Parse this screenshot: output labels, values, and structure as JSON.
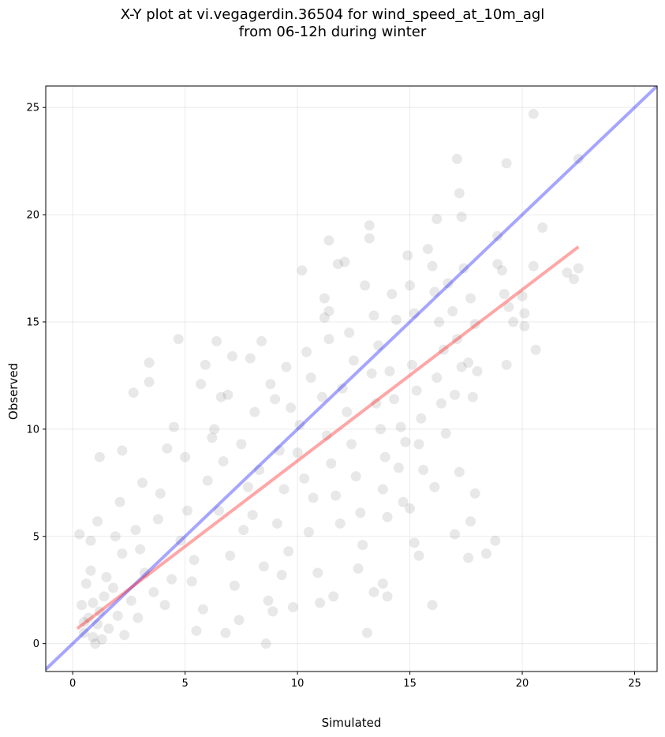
{
  "title_line1": "X-Y plot at vi.vegagerdin.36504 for wind_speed_at_10m_agl",
  "title_line2": "from 06-12h during winter",
  "chart_data": {
    "type": "scatter",
    "title": "X-Y plot at vi.vegagerdin.36504 for wind_speed_at_10m_agl from 06-12h during winter",
    "xlabel": "Simulated",
    "ylabel": "Observed",
    "xlim": [
      -1.2,
      26
    ],
    "ylim": [
      -1.3,
      26
    ],
    "xticks": [
      "0",
      "5",
      "10",
      "15",
      "20",
      "25"
    ],
    "yticks": [
      "0",
      "5",
      "10",
      "15",
      "20",
      "25"
    ],
    "grid": true,
    "colors": {
      "points": "#000000",
      "identity_line": "#0000ff",
      "fit_line": "#ff0000"
    },
    "identity_line": {
      "x": [
        -1.2,
        26
      ],
      "y": [
        -1.2,
        26
      ]
    },
    "fit_line": {
      "x": [
        0.2,
        22.5
      ],
      "y": [
        0.7,
        18.5
      ]
    },
    "points": [
      [
        0.3,
        5.1
      ],
      [
        0.8,
        4.8
      ],
      [
        0.5,
        0.5
      ],
      [
        0.7,
        1.2
      ],
      [
        0.9,
        0.3
      ],
      [
        1.0,
        0.0
      ],
      [
        1.2,
        1.5
      ],
      [
        0.6,
        2.8
      ],
      [
        0.4,
        1.8
      ],
      [
        1.1,
        0.9
      ],
      [
        1.4,
        2.2
      ],
      [
        0.8,
        3.4
      ],
      [
        0.5,
        1.0
      ],
      [
        0.9,
        1.9
      ],
      [
        1.3,
        0.2
      ],
      [
        1.6,
        0.7
      ],
      [
        2.0,
        1.3
      ],
      [
        2.3,
        0.4
      ],
      [
        1.8,
        2.6
      ],
      [
        1.5,
        3.1
      ],
      [
        2.6,
        2.0
      ],
      [
        2.9,
        1.2
      ],
      [
        3.2,
        3.3
      ],
      [
        2.2,
        4.2
      ],
      [
        1.9,
        5.0
      ],
      [
        1.1,
        5.7
      ],
      [
        1.2,
        8.7
      ],
      [
        2.2,
        9.0
      ],
      [
        2.1,
        6.6
      ],
      [
        2.8,
        5.3
      ],
      [
        3.1,
        7.5
      ],
      [
        3.4,
        13.1
      ],
      [
        3.4,
        12.2
      ],
      [
        2.7,
        11.7
      ],
      [
        3.0,
        4.4
      ],
      [
        3.8,
        5.8
      ],
      [
        3.6,
        2.4
      ],
      [
        4.1,
        1.8
      ],
      [
        4.4,
        3.0
      ],
      [
        3.9,
        7.0
      ],
      [
        4.2,
        9.1
      ],
      [
        4.5,
        10.1
      ],
      [
        4.7,
        14.2
      ],
      [
        5.0,
        8.7
      ],
      [
        5.1,
        6.2
      ],
      [
        4.8,
        4.8
      ],
      [
        5.3,
        2.9
      ],
      [
        5.5,
        0.6
      ],
      [
        5.8,
        1.6
      ],
      [
        5.4,
        3.9
      ],
      [
        6.0,
        7.6
      ],
      [
        6.2,
        9.6
      ],
      [
        5.7,
        12.1
      ],
      [
        5.9,
        13.0
      ],
      [
        6.3,
        10.0
      ],
      [
        6.4,
        14.1
      ],
      [
        6.6,
        11.5
      ],
      [
        6.9,
        11.6
      ],
      [
        6.7,
        8.5
      ],
      [
        6.5,
        6.2
      ],
      [
        7.0,
        4.1
      ],
      [
        7.2,
        2.7
      ],
      [
        7.4,
        1.1
      ],
      [
        6.8,
        0.5
      ],
      [
        7.6,
        5.3
      ],
      [
        7.8,
        7.3
      ],
      [
        7.5,
        9.3
      ],
      [
        7.1,
        13.4
      ],
      [
        7.9,
        13.3
      ],
      [
        8.1,
        10.8
      ],
      [
        8.3,
        8.1
      ],
      [
        8.0,
        6.0
      ],
      [
        8.5,
        3.6
      ],
      [
        8.7,
        2.0
      ],
      [
        8.6,
        0.0
      ],
      [
        8.9,
        1.5
      ],
      [
        8.4,
        14.1
      ],
      [
        8.8,
        12.1
      ],
      [
        9.0,
        11.4
      ],
      [
        9.2,
        9.0
      ],
      [
        9.4,
        7.2
      ],
      [
        9.1,
        5.6
      ],
      [
        9.6,
        4.3
      ],
      [
        9.3,
        3.2
      ],
      [
        9.8,
        1.7
      ],
      [
        9.5,
        12.9
      ],
      [
        9.7,
        11.0
      ],
      [
        10.1,
        10.2
      ],
      [
        10.0,
        8.9
      ],
      [
        10.2,
        17.4
      ],
      [
        10.4,
        13.6
      ],
      [
        10.6,
        12.4
      ],
      [
        10.3,
        7.7
      ],
      [
        10.7,
        6.8
      ],
      [
        10.5,
        5.2
      ],
      [
        10.9,
        3.3
      ],
      [
        11.0,
        1.9
      ],
      [
        11.2,
        15.2
      ],
      [
        11.4,
        14.2
      ],
      [
        11.1,
        11.5
      ],
      [
        11.3,
        9.7
      ],
      [
        11.5,
        8.4
      ],
      [
        11.7,
        6.9
      ],
      [
        11.9,
        5.6
      ],
      [
        11.6,
        2.2
      ],
      [
        11.2,
        16.1
      ],
      [
        11.4,
        15.5
      ],
      [
        11.4,
        18.8
      ],
      [
        11.8,
        17.7
      ],
      [
        12.1,
        17.8
      ],
      [
        12.3,
        14.5
      ],
      [
        12.5,
        13.2
      ],
      [
        12.0,
        11.9
      ],
      [
        12.2,
        10.8
      ],
      [
        12.4,
        9.3
      ],
      [
        12.6,
        7.8
      ],
      [
        12.8,
        6.1
      ],
      [
        12.9,
        4.6
      ],
      [
        12.7,
        3.5
      ],
      [
        13.1,
        0.5
      ],
      [
        13.0,
        16.7
      ],
      [
        13.2,
        18.9
      ],
      [
        13.2,
        19.5
      ],
      [
        13.4,
        15.3
      ],
      [
        13.6,
        13.9
      ],
      [
        13.3,
        12.6
      ],
      [
        13.5,
        11.2
      ],
      [
        13.7,
        10.0
      ],
      [
        13.9,
        8.7
      ],
      [
        13.8,
        7.2
      ],
      [
        14.0,
        5.9
      ],
      [
        13.4,
        2.4
      ],
      [
        13.8,
        2.8
      ],
      [
        14.0,
        2.2
      ],
      [
        14.2,
        16.3
      ],
      [
        14.4,
        15.1
      ],
      [
        14.1,
        12.7
      ],
      [
        14.3,
        11.4
      ],
      [
        14.6,
        10.1
      ],
      [
        14.8,
        9.4
      ],
      [
        14.5,
        8.2
      ],
      [
        14.7,
        6.6
      ],
      [
        14.9,
        18.1
      ],
      [
        15.0,
        16.7
      ],
      [
        15.2,
        15.4
      ],
      [
        15.1,
        13.0
      ],
      [
        15.3,
        11.8
      ],
      [
        15.5,
        10.5
      ],
      [
        15.4,
        9.3
      ],
      [
        15.6,
        8.1
      ],
      [
        15.2,
        4.7
      ],
      [
        15.4,
        4.1
      ],
      [
        15.0,
        6.3
      ],
      [
        15.8,
        18.4
      ],
      [
        16.0,
        17.6
      ],
      [
        16.2,
        19.8
      ],
      [
        16.1,
        16.4
      ],
      [
        16.3,
        15.0
      ],
      [
        16.5,
        13.7
      ],
      [
        16.2,
        12.4
      ],
      [
        16.4,
        11.2
      ],
      [
        16.6,
        9.8
      ],
      [
        16.1,
        7.3
      ],
      [
        16.0,
        1.8
      ],
      [
        16.7,
        16.8
      ],
      [
        16.9,
        15.5
      ],
      [
        17.1,
        14.2
      ],
      [
        17.3,
        12.9
      ],
      [
        17.0,
        11.6
      ],
      [
        17.2,
        8.0
      ],
      [
        17.0,
        5.1
      ],
      [
        17.6,
        4.0
      ],
      [
        17.7,
        5.7
      ],
      [
        17.1,
        22.6
      ],
      [
        17.2,
        21.0
      ],
      [
        17.3,
        19.9
      ],
      [
        17.4,
        17.5
      ],
      [
        17.7,
        16.1
      ],
      [
        17.9,
        14.9
      ],
      [
        17.6,
        13.1
      ],
      [
        18.0,
        12.7
      ],
      [
        17.8,
        11.5
      ],
      [
        17.9,
        7.0
      ],
      [
        18.4,
        4.2
      ],
      [
        18.8,
        4.8
      ],
      [
        18.9,
        17.7
      ],
      [
        19.1,
        17.4
      ],
      [
        18.9,
        19.0
      ],
      [
        19.2,
        16.3
      ],
      [
        19.4,
        15.7
      ],
      [
        19.6,
        15.0
      ],
      [
        19.3,
        13.0
      ],
      [
        19.3,
        22.4
      ],
      [
        20.0,
        16.2
      ],
      [
        20.1,
        15.4
      ],
      [
        20.1,
        14.8
      ],
      [
        20.5,
        24.7
      ],
      [
        20.5,
        17.6
      ],
      [
        20.6,
        13.7
      ],
      [
        20.9,
        19.4
      ],
      [
        22.0,
        17.3
      ],
      [
        22.3,
        17.0
      ],
      [
        22.5,
        17.5
      ],
      [
        22.5,
        22.6
      ]
    ]
  }
}
